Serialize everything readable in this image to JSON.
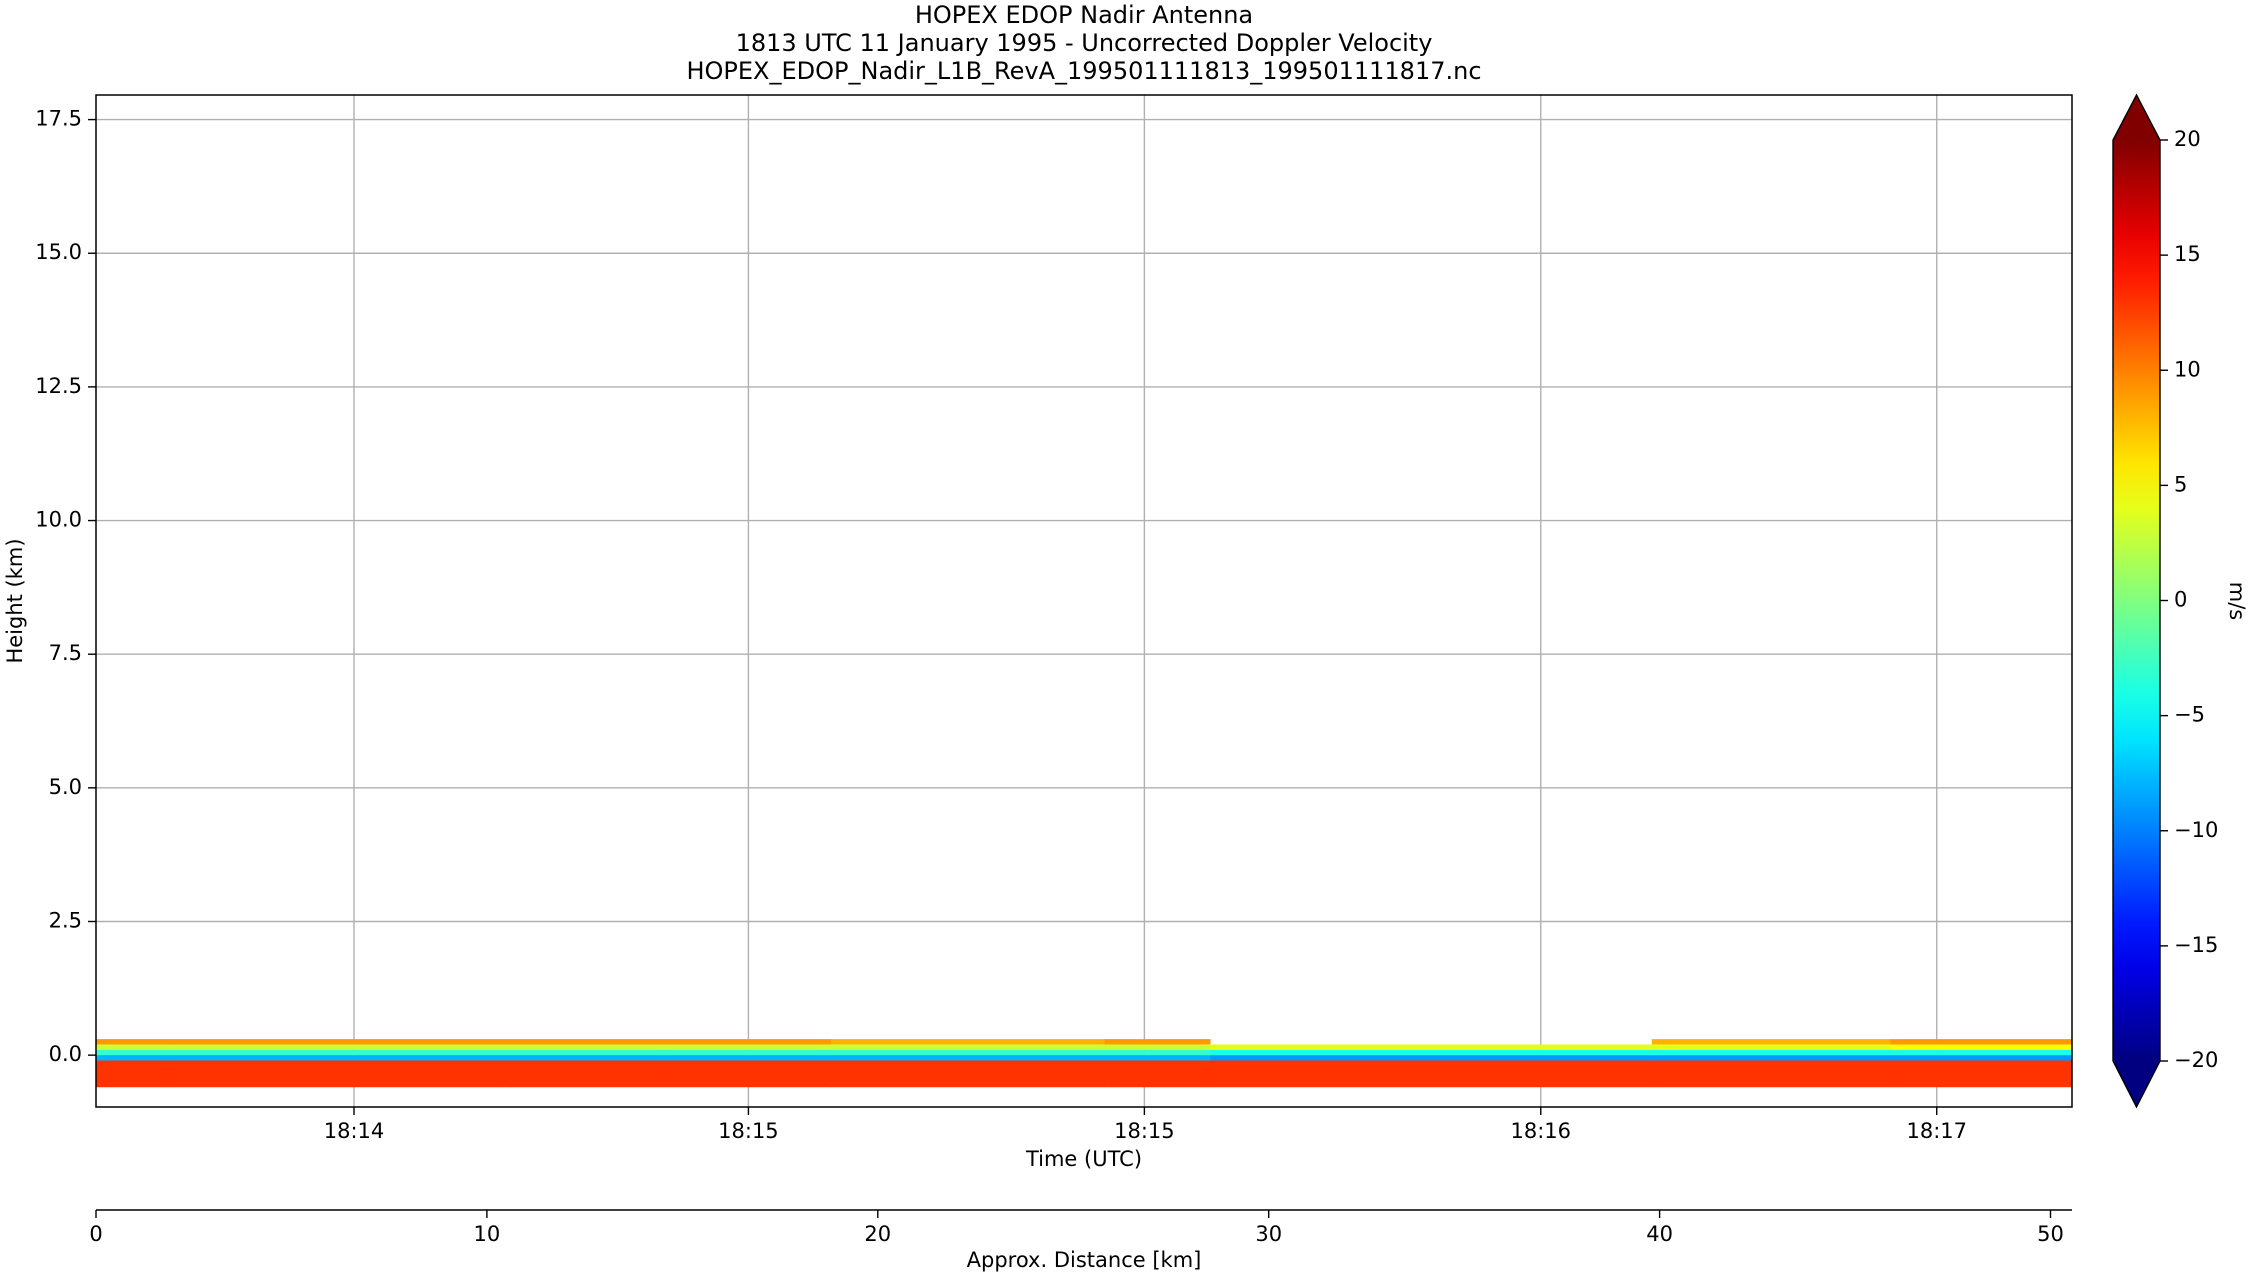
{
  "chart_data": {
    "type": "heatmap",
    "title": [
      "HOPEX EDOP Nadir Antenna",
      "1813 UTC 11 January 1995 - Uncorrected Doppler Velocity",
      "HOPEX_EDOP_Nadir_L1B_RevA_199501111813_199501111817.nc"
    ],
    "xlabel": "Time (UTC)",
    "x2label": "Approx. Distance [km]",
    "ylabel": "Height (km)",
    "colorbar_label": "m/s",
    "colormap": "jet",
    "grid": true,
    "xlim": [
      0,
      50.55
    ],
    "ylim": [
      -0.97,
      17.96
    ],
    "clim": [
      -20,
      20
    ],
    "xticks": [
      {
        "value": 6.6,
        "label": "18:14"
      },
      {
        "value": 16.69,
        "label": "18:15"
      },
      {
        "value": 26.82,
        "label": "18:15"
      },
      {
        "value": 36.96,
        "label": "18:16"
      },
      {
        "value": 47.09,
        "label": "18:17"
      }
    ],
    "x2ticks": [
      0,
      10,
      20,
      30,
      40,
      50
    ],
    "yticks": [
      {
        "value": 0,
        "label": "0.0"
      },
      2.5,
      {
        "value": 5,
        "label": "5.0"
      },
      7.5,
      {
        "value": 10,
        "label": "10.0"
      },
      12.5,
      {
        "value": 15,
        "label": "15.0"
      },
      17.5
    ],
    "cticks": [
      {
        "value": -20,
        "label": "−20"
      },
      {
        "value": -15,
        "label": "−15"
      },
      {
        "value": -10,
        "label": "−10"
      },
      {
        "value": -5,
        "label": "−5"
      },
      0,
      5,
      10,
      15,
      20
    ],
    "x_edges": [
      0,
      2,
      10.6,
      14.4,
      18.8,
      25.8,
      28.5,
      39.8,
      45.9,
      50.55
    ],
    "y_edges": [
      -0.6,
      -0.1,
      0,
      0.1,
      0.2,
      0.3
    ],
    "values": [
      [
        13,
        13,
        13,
        13,
        13,
        13,
        13,
        13,
        13
      ],
      [
        -8,
        -8,
        -8,
        -8,
        -8,
        -8,
        -9,
        -9,
        -9
      ],
      [
        -3,
        -3,
        -3,
        -3,
        -3,
        -3,
        -4,
        -4,
        -4
      ],
      [
        3,
        3,
        3,
        3,
        3,
        3,
        4,
        4,
        5
      ],
      [
        9,
        9,
        9,
        9,
        8,
        9,
        null,
        8,
        9
      ]
    ]
  }
}
